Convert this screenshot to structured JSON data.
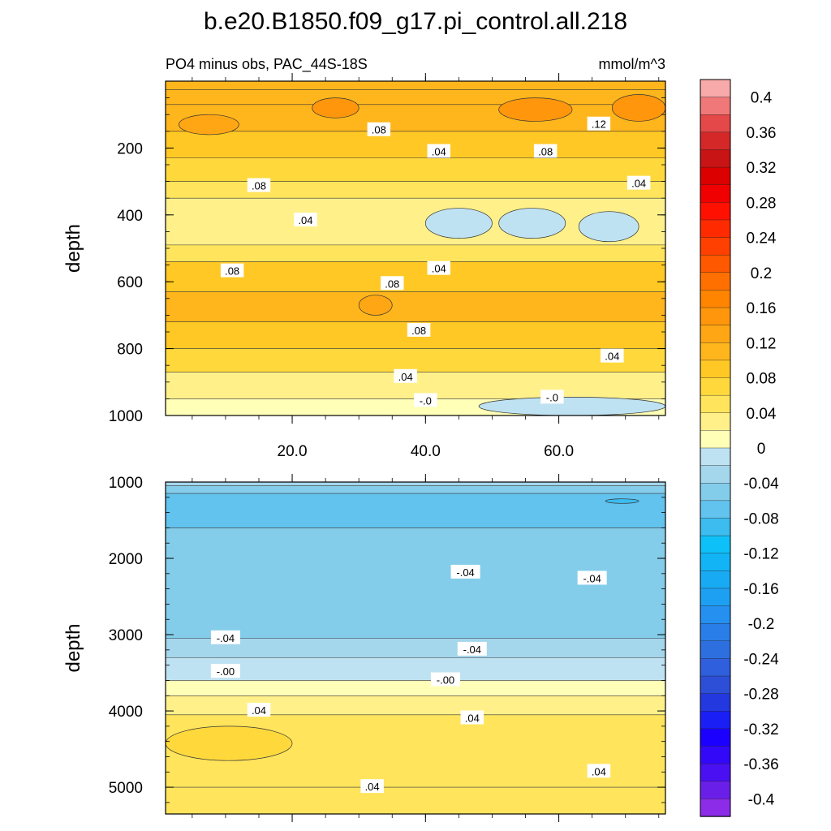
{
  "title": "b.e20.B1850.f09_g17.pi_control.all.218",
  "subtitle_left": "PO4 minus obs, PAC_44S-18S",
  "subtitle_right": "mmol/m^3",
  "chart_data": [
    {
      "type": "heatmap",
      "panel": "upper",
      "ylabel": "depth",
      "xlabel": "",
      "xlim": [
        1,
        76
      ],
      "ylim": [
        0,
        1000
      ],
      "y_reversed": true,
      "x_ticks": [
        20,
        40,
        60
      ],
      "x_tick_labels": [
        "20.0",
        "40.0",
        "60.0"
      ],
      "y_ticks": [
        200,
        400,
        600,
        800,
        1000
      ],
      "y_tick_labels": [
        "200",
        "400",
        "600",
        "800",
        "1000"
      ],
      "bands": [
        {
          "top": 25,
          "bottom": 70,
          "value": 0.11
        },
        {
          "top": 70,
          "bottom": 150,
          "value": 0.1
        },
        {
          "top": 150,
          "bottom": 230,
          "value": 0.08
        },
        {
          "top": 230,
          "bottom": 300,
          "value": 0.07
        },
        {
          "top": 300,
          "bottom": 350,
          "value": 0.05
        },
        {
          "top": 350,
          "bottom": 490,
          "value": 0.02
        },
        {
          "top": 490,
          "bottom": 540,
          "value": 0.04
        },
        {
          "top": 540,
          "bottom": 630,
          "value": 0.08
        },
        {
          "top": 630,
          "bottom": 720,
          "value": 0.11
        },
        {
          "top": 720,
          "bottom": 800,
          "value": 0.09
        },
        {
          "top": 800,
          "bottom": 870,
          "value": 0.06
        },
        {
          "top": 870,
          "bottom": 950,
          "value": 0.03
        },
        {
          "top": 950,
          "bottom": 1000,
          "value": 0.01
        }
      ],
      "patches": [
        {
          "x": [
            40,
            50
          ],
          "y": [
            380,
            470
          ],
          "value": -0.02
        },
        {
          "x": [
            51,
            61
          ],
          "y": [
            380,
            470
          ],
          "value": -0.02
        },
        {
          "x": [
            63,
            72
          ],
          "y": [
            390,
            480
          ],
          "value": -0.02
        },
        {
          "x": [
            48,
            76
          ],
          "y": [
            945,
            1000
          ],
          "value": -0.02
        },
        {
          "x": [
            3,
            12
          ],
          "y": [
            100,
            160
          ],
          "value": 0.12
        },
        {
          "x": [
            23,
            30
          ],
          "y": [
            50,
            110
          ],
          "value": 0.14
        },
        {
          "x": [
            51,
            62
          ],
          "y": [
            50,
            120
          ],
          "value": 0.15
        },
        {
          "x": [
            68,
            76
          ],
          "y": [
            40,
            120
          ],
          "value": 0.14
        },
        {
          "x": [
            30,
            35
          ],
          "y": [
            640,
            700
          ],
          "value": 0.13
        }
      ],
      "contour_labels": [
        {
          "text": ".08",
          "x": 33,
          "y": 145
        },
        {
          "text": ".12",
          "x": 66,
          "y": 128
        },
        {
          "text": ".04",
          "x": 42,
          "y": 210
        },
        {
          "text": ".08",
          "x": 58,
          "y": 210
        },
        {
          "text": ".08",
          "x": 15,
          "y": 312
        },
        {
          "text": ".04",
          "x": 72,
          "y": 305
        },
        {
          "text": ".04",
          "x": 22,
          "y": 415
        },
        {
          "text": ".08",
          "x": 11,
          "y": 567
        },
        {
          "text": ".04",
          "x": 42,
          "y": 560
        },
        {
          "text": ".08",
          "x": 35,
          "y": 605
        },
        {
          "text": ".08",
          "x": 39,
          "y": 745
        },
        {
          "text": ".04",
          "x": 68,
          "y": 822
        },
        {
          "text": ".04",
          "x": 37,
          "y": 883
        },
        {
          "text": "-.0",
          "x": 40,
          "y": 955
        },
        {
          "text": "-.0",
          "x": 59,
          "y": 945
        }
      ]
    },
    {
      "type": "heatmap",
      "panel": "lower",
      "ylabel": "depth",
      "xlabel": "",
      "xlim": [
        1,
        76
      ],
      "ylim": [
        1000,
        5350
      ],
      "y_reversed": true,
      "y_ticks": [
        1000,
        2000,
        3000,
        4000,
        5000
      ],
      "y_tick_labels": [
        "1000",
        "2000",
        "3000",
        "4000",
        "5000"
      ],
      "bands": [
        {
          "top": 1000,
          "bottom": 1050,
          "value": -0.03
        },
        {
          "top": 1050,
          "bottom": 1150,
          "value": -0.05
        },
        {
          "top": 1150,
          "bottom": 1600,
          "value": -0.07
        },
        {
          "top": 1600,
          "bottom": 3050,
          "value": -0.05
        },
        {
          "top": 3050,
          "bottom": 3300,
          "value": -0.03
        },
        {
          "top": 3300,
          "bottom": 3600,
          "value": -0.01
        },
        {
          "top": 3600,
          "bottom": 3800,
          "value": 0.01
        },
        {
          "top": 3800,
          "bottom": 4050,
          "value": 0.03
        },
        {
          "top": 4050,
          "bottom": 5000,
          "value": 0.05
        },
        {
          "top": 5000,
          "bottom": 5350,
          "value": 0.04
        }
      ],
      "patches": [
        {
          "x": [
            1,
            20
          ],
          "y": [
            4200,
            4650
          ],
          "value": 0.07
        },
        {
          "x": [
            67,
            72
          ],
          "y": [
            1220,
            1280
          ],
          "value": -0.1
        }
      ],
      "contour_labels": [
        {
          "text": "-.04",
          "x": 46,
          "y": 2180
        },
        {
          "text": "-.04",
          "x": 65,
          "y": 2260
        },
        {
          "text": "-.04",
          "x": 10,
          "y": 3040
        },
        {
          "text": "-.04",
          "x": 47,
          "y": 3190
        },
        {
          "text": "-.00",
          "x": 10,
          "y": 3480
        },
        {
          "text": "-.00",
          "x": 43,
          "y": 3590
        },
        {
          "text": ".04",
          "x": 15,
          "y": 3990
        },
        {
          "text": ".04",
          "x": 47,
          "y": 4090
        },
        {
          "text": ".04",
          "x": 66,
          "y": 4790
        },
        {
          "text": ".04",
          "x": 32,
          "y": 4990
        }
      ]
    }
  ],
  "colorbar": {
    "levels": [
      -0.42,
      -0.4,
      -0.38,
      -0.36,
      -0.34,
      -0.32,
      -0.3,
      -0.28,
      -0.26,
      -0.24,
      -0.22,
      -0.2,
      -0.18,
      -0.16,
      -0.14,
      -0.12,
      -0.1,
      -0.08,
      -0.06,
      -0.04,
      -0.02,
      0,
      0.02,
      0.04,
      0.06,
      0.08,
      0.1,
      0.12,
      0.14,
      0.16,
      0.18,
      0.2,
      0.22,
      0.24,
      0.26,
      0.28,
      0.3,
      0.32,
      0.34,
      0.36,
      0.38,
      0.4,
      0.42
    ],
    "colors": [
      "#8c2ce8",
      "#6a1fe8",
      "#4a10f2",
      "#3308f8",
      "#1c00ff",
      "#1a1ff5",
      "#2438e0",
      "#2d4fd8",
      "#2f5fdc",
      "#2e6fe0",
      "#2a7ee8",
      "#2590ef",
      "#1ea0f2",
      "#19aaf4",
      "#12b4f6",
      "#0ec0f8",
      "#3cbcef",
      "#62c3ee",
      "#84cdea",
      "#a4d6ec",
      "#bfe2f2",
      "#ffffb8",
      "#fff08a",
      "#ffe45c",
      "#ffd93c",
      "#ffc824",
      "#ffb61c",
      "#ffa614",
      "#ff960c",
      "#ff8400",
      "#ff7000",
      "#ff5800",
      "#ff4000",
      "#ff2a00",
      "#ff1000",
      "#f00000",
      "#dc0000",
      "#c81414",
      "#d42828",
      "#e44848",
      "#f07878",
      "#f8aaaa"
    ],
    "tick_labels": [
      "0.4",
      "0.36",
      "0.32",
      "0.28",
      "0.24",
      "0.2",
      "0.16",
      "0.12",
      "0.08",
      "0.04",
      "0",
      "-0.04",
      "-0.08",
      "-0.12",
      "-0.16",
      "-0.2",
      "-0.24",
      "-0.28",
      "-0.32",
      "-0.36",
      "-0.4"
    ]
  }
}
